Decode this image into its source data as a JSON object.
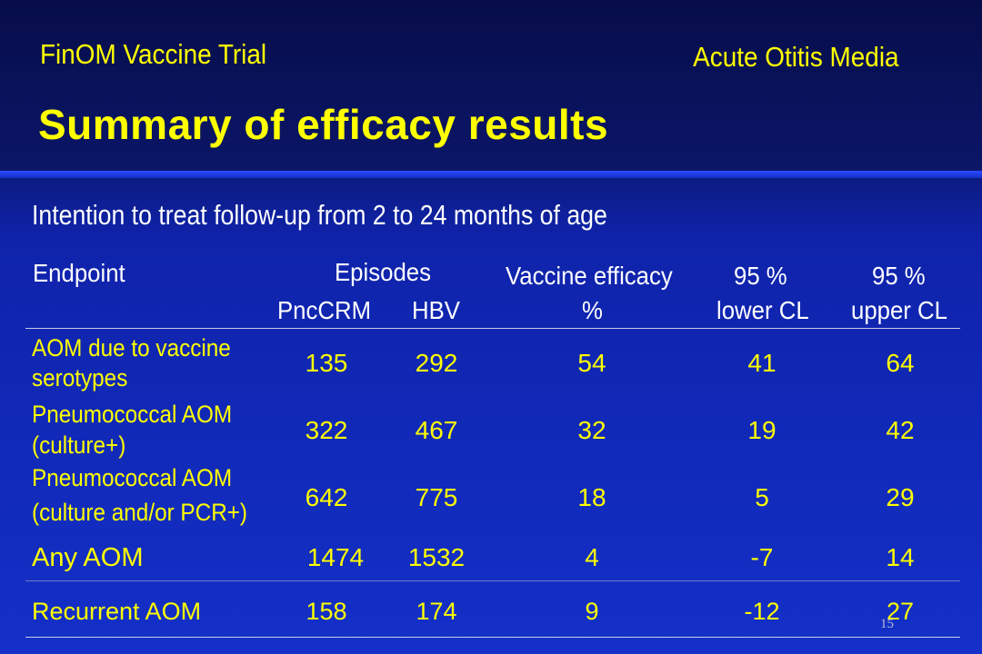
{
  "header": {
    "left": "FinOM Vaccine Trial",
    "right": "Acute Otitis Media",
    "title": "Summary of efficacy results"
  },
  "subtitle": "Intention to treat follow-up from 2 to 24 months of age",
  "table": {
    "col_endpoint": "Endpoint",
    "col_episodes": "Episodes",
    "col_pnccrm": "PncCRM",
    "col_hbv": "HBV",
    "col_efficacy_line1": "Vaccine efficacy",
    "col_efficacy_line2": "%",
    "col_lower_line1": "95 %",
    "col_lower_line2": "lower CL",
    "col_upper_line1": "95 %",
    "col_upper_line2": "upper CL",
    "rows": [
      {
        "label1": "AOM due to vaccine",
        "label2": "serotypes",
        "pnccrm": "135",
        "hbv": "292",
        "efficacy": "54",
        "lower": "41",
        "upper": "64"
      },
      {
        "label1": "Pneumococcal AOM",
        "label2": "(culture+)",
        "pnccrm": "322",
        "hbv": "467",
        "efficacy": "32",
        "lower": "19",
        "upper": "42"
      },
      {
        "label1": "Pneumococcal AOM",
        "label2": "(culture and/or PCR+)",
        "pnccrm": "642",
        "hbv": "775",
        "efficacy": "18",
        "lower": "5",
        "upper": "29"
      },
      {
        "label1": "Any AOM",
        "pnccrm": "1474",
        "hbv": "1532",
        "efficacy": "4",
        "lower": "-7",
        "upper": "14"
      },
      {
        "label1": "Recurrent AOM",
        "pnccrm": "158",
        "hbv": "174",
        "efficacy": "9",
        "lower": "-12",
        "upper": "27"
      }
    ]
  },
  "page_number": "15"
}
